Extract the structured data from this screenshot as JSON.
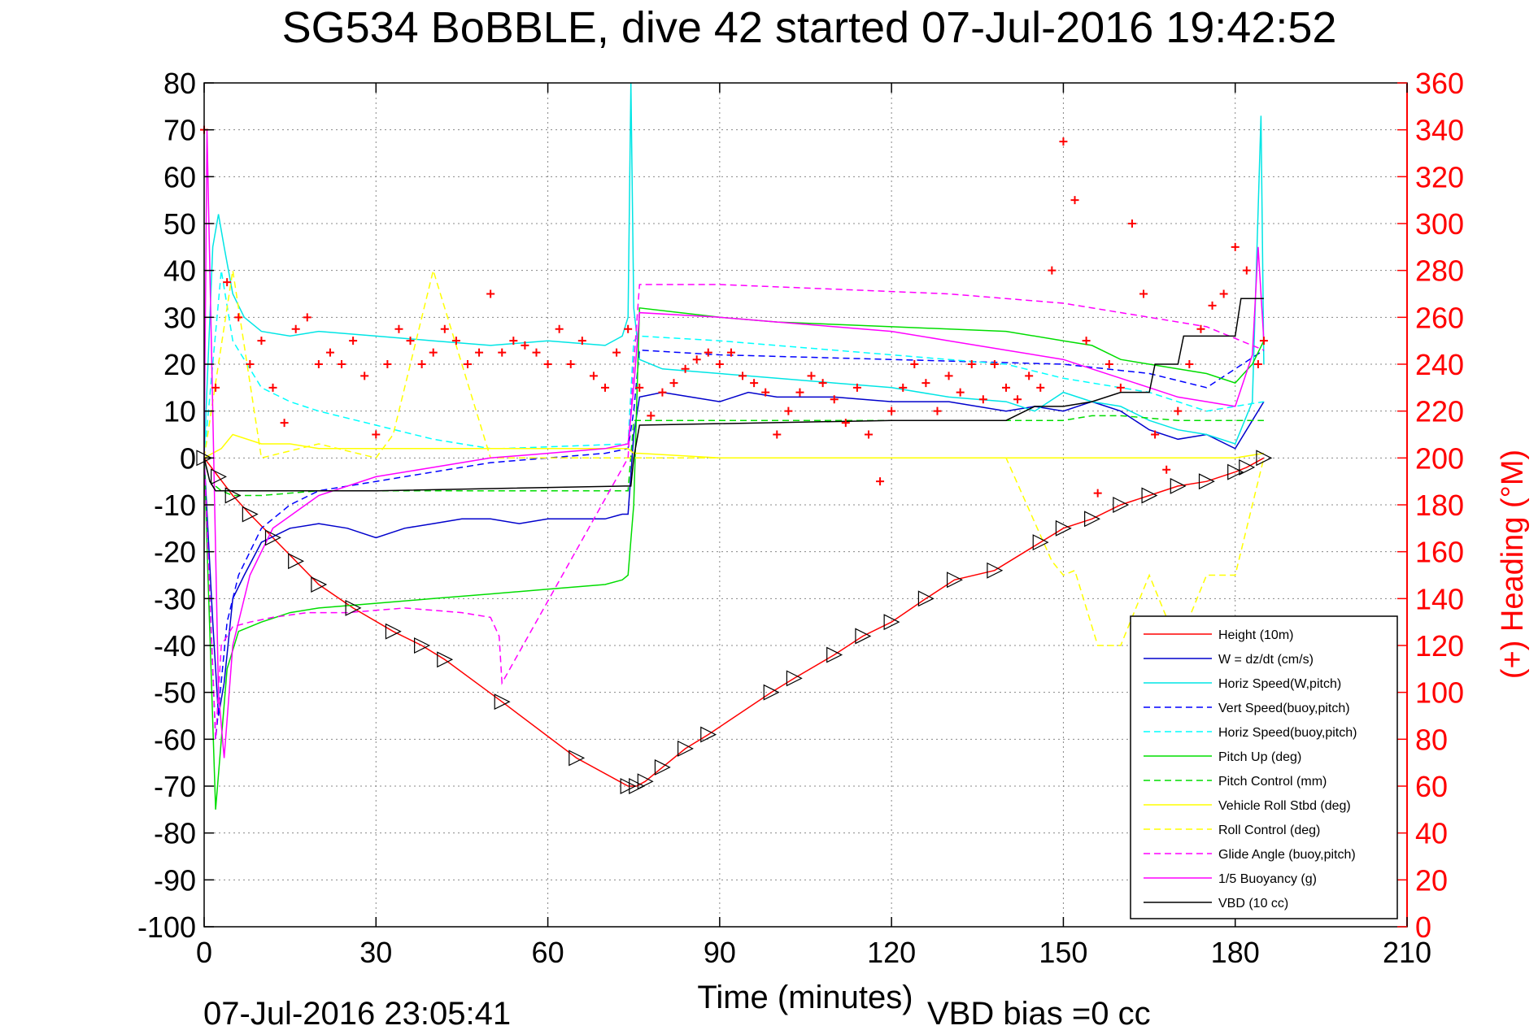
{
  "chart_data": {
    "type": "line",
    "title": "SG534 BoBBLE, dive 42 started 07-Jul-2016 19:42:52",
    "xlabel": "Time (minutes)",
    "ylabel_right": "(+) Heading (°M)",
    "xlim": [
      0,
      210
    ],
    "ylim": [
      -100,
      80
    ],
    "ylim_right": [
      0,
      360
    ],
    "x_ticks": [
      "0",
      "30",
      "60",
      "90",
      "120",
      "150",
      "180",
      "210"
    ],
    "y_ticks": [
      "-100",
      "-90",
      "-80",
      "-70",
      "-60",
      "-50",
      "-40",
      "-30",
      "-20",
      "-10",
      "0",
      "10",
      "20",
      "30",
      "40",
      "50",
      "60",
      "70",
      "80"
    ],
    "y_ticks_right": [
      "0",
      "20",
      "40",
      "60",
      "80",
      "100",
      "120",
      "140",
      "160",
      "180",
      "200",
      "220",
      "240",
      "260",
      "280",
      "300",
      "320",
      "340",
      "360"
    ],
    "grid": true,
    "legend_position": "lower-right",
    "footer_left": "07-Jul-2016 23:05:41",
    "footer_right": "VBD bias =0 cc",
    "colors": {
      "axis": "#000000",
      "right_axis": "#ff0000",
      "grid": "#888888"
    },
    "series": [
      {
        "name": "Height (10m)",
        "color": "#ff0000",
        "dash": "solid",
        "x": [
          0,
          2.5,
          5,
          8,
          12,
          16,
          20,
          26,
          33,
          38,
          42,
          52,
          65,
          74,
          75.5,
          77,
          80,
          84,
          88,
          99,
          103,
          110,
          115,
          120,
          126,
          131,
          138,
          146,
          150,
          155,
          160,
          165,
          170,
          175,
          180,
          182,
          185
        ],
        "y": [
          0,
          -4,
          -8,
          -12,
          -17,
          -22,
          -27,
          -32,
          -37,
          -40,
          -43,
          -52,
          -64,
          -70,
          -70,
          -69,
          -66,
          -62,
          -59,
          -50,
          -47,
          -42,
          -38,
          -35,
          -30,
          -26,
          -24,
          -18,
          -15,
          -13,
          -10,
          -8,
          -6,
          -5,
          -3,
          -2,
          0
        ]
      },
      {
        "name": "W = dz/dt (cm/s)",
        "color": "#0000cc",
        "dash": "solid",
        "x": [
          0,
          1.5,
          2.5,
          3.5,
          5,
          7,
          10,
          15,
          20,
          25,
          30,
          35,
          40,
          45,
          50,
          55,
          60,
          65,
          70,
          73,
          74,
          75,
          76,
          80,
          85,
          90,
          95,
          100,
          110,
          120,
          130,
          140,
          145,
          150,
          155,
          160,
          165,
          170,
          175,
          180,
          183,
          185
        ],
        "y": [
          0,
          -35,
          -55,
          -48,
          -30,
          -25,
          -18,
          -15,
          -14,
          -15,
          -17,
          -15,
          -14,
          -13,
          -13,
          -14,
          -13,
          -13,
          -13,
          -12,
          -12,
          5,
          13,
          14,
          13,
          12,
          14,
          13,
          13,
          12,
          12,
          10,
          11,
          10,
          12,
          10,
          6,
          4,
          5,
          2,
          8,
          12
        ]
      },
      {
        "name": "Horiz Speed(W,pitch)",
        "color": "#00e5e5",
        "dash": "solid",
        "x": [
          0,
          1.5,
          2.5,
          3.5,
          5,
          7,
          10,
          15,
          20,
          30,
          40,
          50,
          60,
          70,
          73,
          74,
          74.5,
          75,
          76,
          80,
          90,
          100,
          110,
          120,
          130,
          140,
          145,
          150,
          155,
          160,
          165,
          170,
          175,
          180,
          183,
          184.5,
          185
        ],
        "y": [
          0,
          45,
          52,
          45,
          35,
          30,
          27,
          26,
          27,
          26,
          25,
          24,
          25,
          24,
          26,
          30,
          80,
          32,
          21,
          19,
          18,
          17,
          16,
          15,
          13,
          12,
          10,
          14,
          12,
          11,
          8,
          6,
          5,
          3,
          12,
          73,
          20
        ]
      },
      {
        "name": "Vert Speed(buoy,pitch)",
        "color": "#0000ff",
        "dash": "dashed",
        "x": [
          0,
          2,
          4,
          6,
          10,
          15,
          20,
          30,
          40,
          50,
          60,
          70,
          74,
          75,
          76,
          90,
          120,
          150,
          165,
          175,
          185
        ],
        "y": [
          0,
          -60,
          -35,
          -25,
          -15,
          -10,
          -7,
          -5,
          -3,
          -1,
          0,
          1,
          2,
          10,
          23,
          22,
          21,
          20,
          18,
          15,
          23
        ]
      },
      {
        "name": "Horiz Speed(buoy,pitch)",
        "color": "#00ffff",
        "dash": "dashed",
        "x": [
          0,
          3,
          5,
          10,
          15,
          20,
          30,
          40,
          50,
          52,
          74,
          75,
          76,
          90,
          120,
          140,
          150,
          165,
          175,
          185
        ],
        "y": [
          0,
          40,
          25,
          15,
          12,
          10,
          7,
          4,
          2,
          2,
          3,
          25,
          26,
          25,
          22,
          20,
          17,
          14,
          10,
          12
        ]
      },
      {
        "name": "Pitch Up (deg)",
        "color": "#00dd00",
        "dash": "solid",
        "x": [
          0,
          2,
          4,
          6,
          10,
          15,
          20,
          30,
          40,
          50,
          60,
          70,
          73,
          74,
          75,
          76,
          90,
          100,
          120,
          140,
          150,
          155,
          160,
          165,
          170,
          175,
          180,
          183,
          185
        ],
        "y": [
          0,
          -75,
          -45,
          -37,
          -35,
          -33,
          -32,
          -31,
          -30,
          -29,
          -28,
          -27,
          -26,
          -25,
          -10,
          32,
          30,
          29,
          28,
          27,
          25,
          24,
          21,
          20,
          19,
          18,
          16,
          20,
          25
        ]
      },
      {
        "name": "Pitch Control (mm)",
        "color": "#00dd00",
        "dash": "dashed",
        "x": [
          0,
          1,
          3,
          5,
          10,
          20,
          30,
          50,
          70,
          74,
          75,
          76,
          120,
          150,
          155,
          160,
          170,
          185
        ],
        "y": [
          0,
          -5,
          -7,
          -8,
          -8,
          -7,
          -7,
          -7,
          -7,
          -7,
          8,
          8,
          8,
          8,
          9,
          9,
          8,
          8
        ]
      },
      {
        "name": "Vehicle Roll Stbd (deg)",
        "color": "#ffff00",
        "dash": "solid",
        "x": [
          0,
          3,
          5,
          10,
          15,
          20,
          30,
          40,
          50,
          60,
          70,
          74,
          75,
          76,
          90,
          100,
          120,
          140,
          150,
          160,
          170,
          180,
          185
        ],
        "y": [
          0,
          2,
          5,
          3,
          3,
          2,
          2,
          2,
          2,
          2,
          2,
          2,
          1,
          1,
          0,
          0,
          0,
          0,
          0,
          0,
          0,
          0,
          1
        ]
      },
      {
        "name": "Roll Control (deg)",
        "color": "#ffff00",
        "dash": "dashed",
        "x": [
          0,
          5,
          10,
          20,
          30,
          33,
          40,
          50,
          60,
          70,
          74,
          76,
          90,
          120,
          140,
          148,
          150,
          152,
          156,
          160,
          165,
          170,
          175,
          180,
          185
        ],
        "y": [
          0,
          40,
          0,
          3,
          0,
          5,
          40,
          0,
          0,
          0,
          0,
          0,
          0,
          0,
          0,
          -22,
          -25,
          -24,
          -40,
          -40,
          -25,
          -40,
          -25,
          -25,
          0
        ]
      },
      {
        "name": "Glide Angle (buoy,pitch)",
        "color": "#ff00ff",
        "dash": "dashed",
        "x": [
          0,
          2,
          3,
          5,
          8,
          12,
          18,
          25,
          35,
          45,
          50,
          51.5,
          52,
          74,
          75,
          76,
          90,
          110,
          130,
          150,
          165,
          175,
          185
        ],
        "y": [
          0,
          -60,
          -40,
          -36,
          -35,
          -34,
          -33,
          -33,
          -32,
          -33,
          -34,
          -38,
          -48,
          0,
          20,
          37,
          37,
          36,
          35,
          33,
          30,
          28,
          23
        ]
      },
      {
        "name": "1/5 Buoyancy (g)",
        "color": "#ff00ff",
        "dash": "solid",
        "x": [
          0,
          0.5,
          1.5,
          2.5,
          3.5,
          5,
          8,
          12,
          20,
          30,
          40,
          50,
          60,
          70,
          74,
          75,
          76,
          90,
          100,
          110,
          120,
          130,
          140,
          150,
          155,
          160,
          165,
          170,
          175,
          180,
          183,
          184,
          185
        ],
        "y": [
          0,
          70,
          10,
          -50,
          -64,
          -40,
          -25,
          -15,
          -8,
          -4,
          -2,
          0,
          1,
          2,
          3,
          15,
          31,
          30,
          29,
          28,
          27,
          25,
          23,
          21,
          19,
          17,
          15,
          13,
          12,
          11,
          22,
          45,
          25
        ]
      },
      {
        "name": "VBD (10 cc)",
        "color": "#000000",
        "dash": "solid",
        "x": [
          0,
          1,
          2,
          30,
          73.5,
          74.5,
          75,
          76,
          120,
          140,
          145,
          150,
          155,
          160,
          165,
          166,
          170,
          171,
          180,
          181,
          185
        ],
        "y": [
          0,
          -5,
          -7,
          -7,
          -6,
          -6,
          0,
          7,
          8,
          8,
          11,
          11,
          12,
          14,
          14,
          20,
          20,
          26,
          26,
          34,
          34
        ]
      }
    ],
    "heading_series": {
      "axis": "right",
      "color": "#ff0000",
      "marker": "+",
      "x": [
        0,
        2,
        4,
        6,
        8,
        10,
        12,
        14,
        16,
        18,
        20,
        22,
        24,
        26,
        28,
        30,
        32,
        34,
        36,
        38,
        40,
        42,
        44,
        46,
        48,
        50,
        52,
        54,
        56,
        58,
        60,
        62,
        64,
        66,
        68,
        70,
        72,
        74,
        76,
        78,
        80,
        82,
        84,
        86,
        88,
        90,
        92,
        94,
        96,
        98,
        100,
        102,
        104,
        106,
        108,
        110,
        112,
        114,
        116,
        118,
        120,
        122,
        124,
        126,
        128,
        130,
        132,
        134,
        136,
        138,
        140,
        142,
        144,
        146,
        148,
        150,
        152,
        154,
        156,
        158,
        160,
        162,
        164,
        166,
        168,
        170,
        172,
        174,
        176,
        178,
        180,
        182,
        184,
        185
      ],
      "y": [
        340,
        230,
        275,
        260,
        240,
        250,
        230,
        215,
        255,
        260,
        240,
        245,
        240,
        250,
        235,
        210,
        240,
        255,
        250,
        240,
        245,
        255,
        250,
        240,
        245,
        270,
        245,
        250,
        248,
        245,
        240,
        255,
        240,
        250,
        235,
        230,
        245,
        255,
        230,
        218,
        228,
        232,
        238,
        242,
        245,
        240,
        245,
        235,
        232,
        228,
        210,
        220,
        228,
        235,
        232,
        225,
        215,
        230,
        210,
        190,
        220,
        230,
        240,
        232,
        220,
        235,
        228,
        240,
        225,
        240,
        230,
        225,
        235,
        230,
        280,
        335,
        310,
        250,
        185,
        240,
        230,
        300,
        270,
        210,
        195,
        220,
        240,
        255,
        265,
        270,
        290,
        280,
        240,
        250
      ]
    }
  }
}
